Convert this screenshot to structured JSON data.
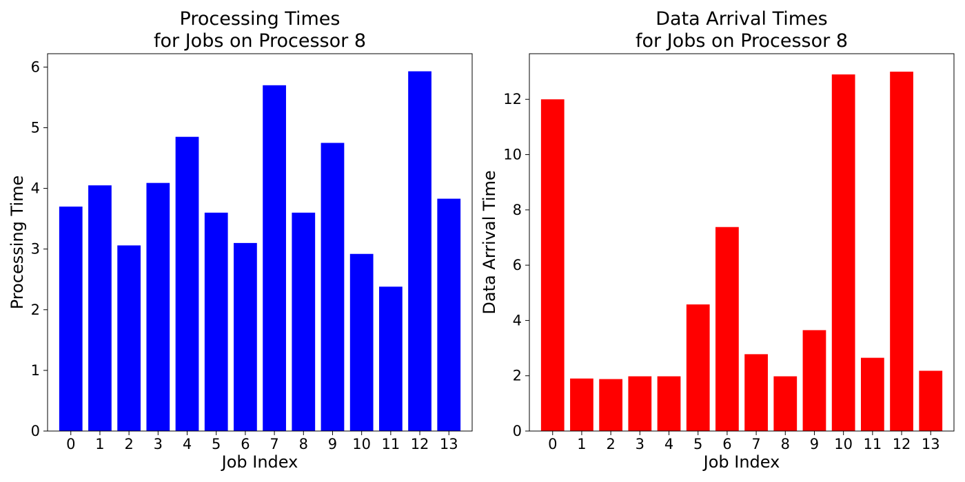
{
  "chart_data": [
    {
      "type": "bar",
      "title": [
        "Processing Times",
        "for Jobs on Processor 8"
      ],
      "xlabel": "Job Index",
      "ylabel": "Processing Time",
      "categories": [
        "0",
        "1",
        "2",
        "3",
        "4",
        "5",
        "6",
        "7",
        "8",
        "9",
        "10",
        "11",
        "12",
        "13"
      ],
      "values": [
        3.7,
        4.05,
        3.06,
        4.09,
        4.85,
        3.6,
        3.1,
        5.7,
        3.6,
        4.75,
        2.92,
        2.38,
        5.93,
        3.83
      ],
      "ylim": [
        0,
        6.22
      ],
      "yticks": [
        0,
        1,
        2,
        3,
        4,
        5,
        6
      ],
      "color": "#0000ff",
      "grid": false
    },
    {
      "type": "bar",
      "title": [
        "Data Arrival Times",
        "for Jobs on Processor 8"
      ],
      "xlabel": "Job Index",
      "ylabel": "Data Arrival Time",
      "categories": [
        "0",
        "1",
        "2",
        "3",
        "4",
        "5",
        "6",
        "7",
        "8",
        "9",
        "10",
        "11",
        "12",
        "13"
      ],
      "values": [
        12.0,
        1.9,
        1.88,
        1.98,
        1.98,
        4.58,
        7.38,
        2.78,
        1.98,
        3.65,
        12.9,
        2.65,
        13.0,
        2.18
      ],
      "ylim": [
        0,
        13.65
      ],
      "yticks": [
        0,
        2,
        4,
        6,
        8,
        10,
        12
      ],
      "color": "#ff0000",
      "grid": false
    }
  ]
}
